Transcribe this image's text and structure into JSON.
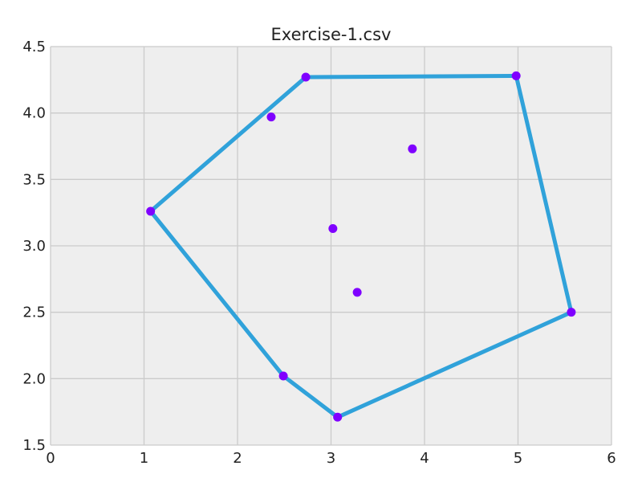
{
  "chart_data": {
    "type": "scatter",
    "title": "Exercise-1.csv",
    "xlabel": "",
    "ylabel": "",
    "xlim": [
      0,
      6
    ],
    "ylim": [
      1.5,
      4.5
    ],
    "x_ticks": [
      "0",
      "1",
      "2",
      "3",
      "4",
      "5",
      "6"
    ],
    "y_ticks": [
      "1.5",
      "2.0",
      "2.5",
      "3.0",
      "3.5",
      "4.0",
      "4.5"
    ],
    "grid": true,
    "background": "#eeeeee",
    "grid_color": "#cbcbcb",
    "points": [
      {
        "x": 1.07,
        "y": 3.26
      },
      {
        "x": 2.36,
        "y": 3.97
      },
      {
        "x": 2.73,
        "y": 4.27
      },
      {
        "x": 4.98,
        "y": 4.28
      },
      {
        "x": 3.87,
        "y": 3.73
      },
      {
        "x": 3.02,
        "y": 3.13
      },
      {
        "x": 3.28,
        "y": 2.65
      },
      {
        "x": 5.57,
        "y": 2.5
      },
      {
        "x": 2.49,
        "y": 2.02
      },
      {
        "x": 3.07,
        "y": 1.71
      }
    ],
    "point_color": "#7f00ff",
    "hull": [
      {
        "x": 1.07,
        "y": 3.26
      },
      {
        "x": 2.73,
        "y": 4.27
      },
      {
        "x": 4.98,
        "y": 4.28
      },
      {
        "x": 5.57,
        "y": 2.5
      },
      {
        "x": 3.07,
        "y": 1.71
      },
      {
        "x": 2.49,
        "y": 2.02
      },
      {
        "x": 1.07,
        "y": 3.26
      }
    ],
    "hull_color": "#30a2da"
  }
}
